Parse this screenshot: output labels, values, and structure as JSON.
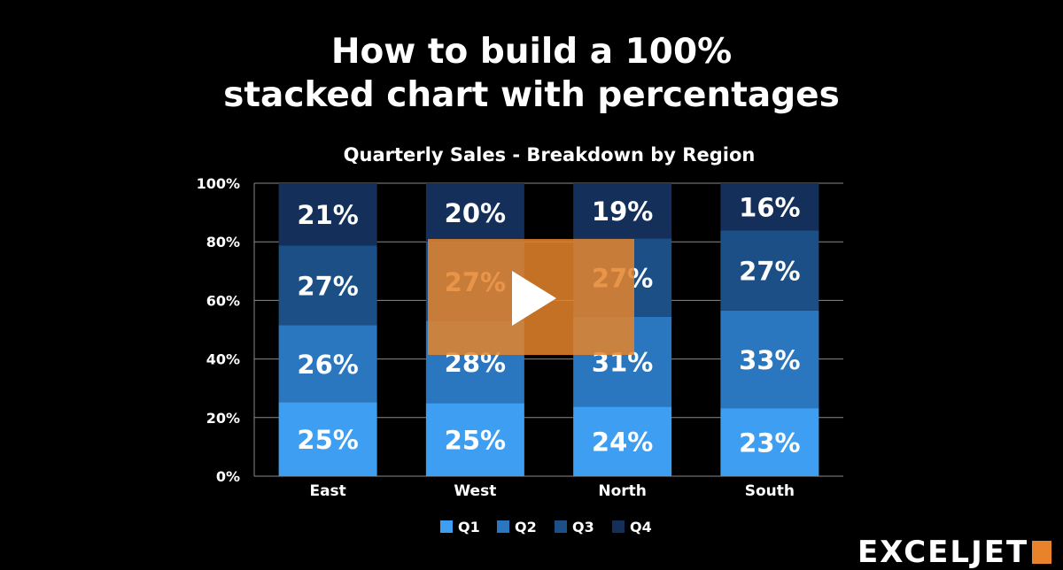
{
  "video": {
    "headline_line1": "How to build a 100%",
    "headline_line2": "stacked chart with percentages",
    "brand": "EXCELJET",
    "play_button": "play"
  },
  "colors": {
    "background": "#000000",
    "q1": "#3e9ef1",
    "q2": "#2a76bf",
    "q3": "#1b4f86",
    "q4": "#132f5a",
    "overlay": "#e4832c"
  },
  "chart_data": {
    "type": "bar",
    "stacked": "100%",
    "title": "Quarterly Sales - Breakdown by Region",
    "categories": [
      "East",
      "West",
      "North",
      "South"
    ],
    "series": [
      {
        "name": "Q1",
        "values": [
          25,
          25,
          24,
          23
        ],
        "labels": [
          "25%",
          "25%",
          "24%",
          "23%"
        ]
      },
      {
        "name": "Q2",
        "values": [
          26,
          28,
          31,
          33
        ],
        "labels": [
          "26%",
          "28%",
          "31%",
          "33%"
        ]
      },
      {
        "name": "Q3",
        "values": [
          27,
          27,
          27,
          27
        ],
        "labels": [
          "27%",
          "27%",
          "27%",
          "27%"
        ]
      },
      {
        "name": "Q4",
        "values": [
          21,
          20,
          19,
          16
        ],
        "labels": [
          "21%",
          "20%",
          "19%",
          "16%"
        ]
      }
    ],
    "ylim": [
      0,
      100
    ],
    "yticks": [
      "0%",
      "20%",
      "40%",
      "60%",
      "80%",
      "100%"
    ],
    "grid": true,
    "legend": "bottom"
  }
}
